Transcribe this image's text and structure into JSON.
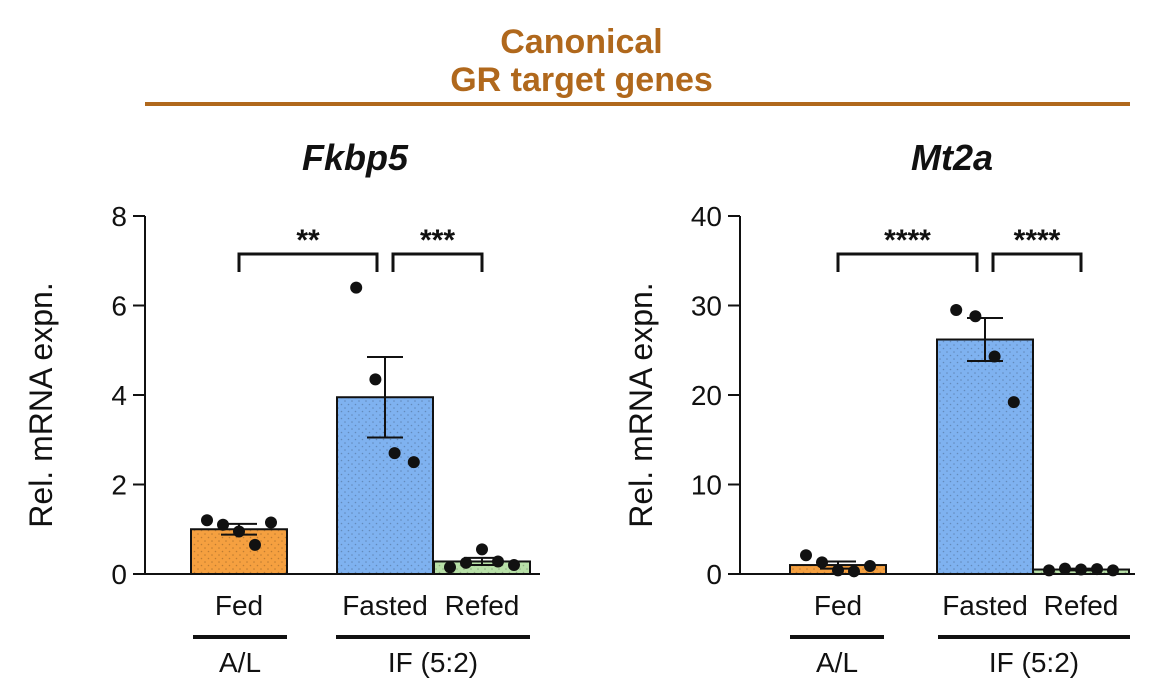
{
  "header": {
    "line1": "Canonical",
    "line2": "GR target genes",
    "color": "#b0681c"
  },
  "chart_data": [
    {
      "type": "bar",
      "title": "Fkbp5",
      "ylabel": "Rel. mRNA expn.",
      "ylim": [
        0,
        8
      ],
      "yticks": [
        0,
        2,
        4,
        6,
        8
      ],
      "categories": [
        "Fed",
        "Fasted",
        "Refed"
      ],
      "values": [
        1.0,
        3.95,
        0.28
      ],
      "sem": [
        0.12,
        0.9,
        0.08
      ],
      "points": [
        [
          1.2,
          1.1,
          0.95,
          0.65,
          1.15
        ],
        [
          6.4,
          4.35,
          2.7,
          2.5
        ],
        [
          0.15,
          0.25,
          0.55,
          0.28,
          0.2
        ]
      ],
      "colors": [
        "#f5a040",
        "#7fb2f0",
        "#b8e0a8"
      ],
      "groups": [
        {
          "label": "A/L",
          "categories": [
            "Fed"
          ]
        },
        {
          "label": "IF (5:2)",
          "categories": [
            "Fasted",
            "Refed"
          ]
        }
      ],
      "significance": [
        {
          "from": "Fed",
          "to": "Fasted",
          "label": "**"
        },
        {
          "from": "Fasted",
          "to": "Refed",
          "label": "***"
        }
      ]
    },
    {
      "type": "bar",
      "title": "Mt2a",
      "ylabel": "Rel. mRNA expn.",
      "ylim": [
        0,
        40
      ],
      "yticks": [
        0,
        10,
        20,
        30,
        40
      ],
      "categories": [
        "Fed",
        "Fasted",
        "Refed"
      ],
      "values": [
        1.0,
        26.2,
        0.5
      ],
      "sem": [
        0.4,
        2.4,
        0.1
      ],
      "points": [
        [
          2.1,
          1.3,
          0.4,
          0.3,
          0.9
        ],
        [
          29.5,
          28.8,
          24.3,
          19.2
        ],
        [
          0.4,
          0.6,
          0.5,
          0.55,
          0.4
        ]
      ],
      "colors": [
        "#f5a040",
        "#7fb2f0",
        "#b8e0a8"
      ],
      "groups": [
        {
          "label": "A/L",
          "categories": [
            "Fed"
          ]
        },
        {
          "label": "IF (5:2)",
          "categories": [
            "Fasted",
            "Refed"
          ]
        }
      ],
      "significance": [
        {
          "from": "Fed",
          "to": "Fasted",
          "label": "****"
        },
        {
          "from": "Fasted",
          "to": "Refed",
          "label": "****"
        }
      ]
    }
  ]
}
